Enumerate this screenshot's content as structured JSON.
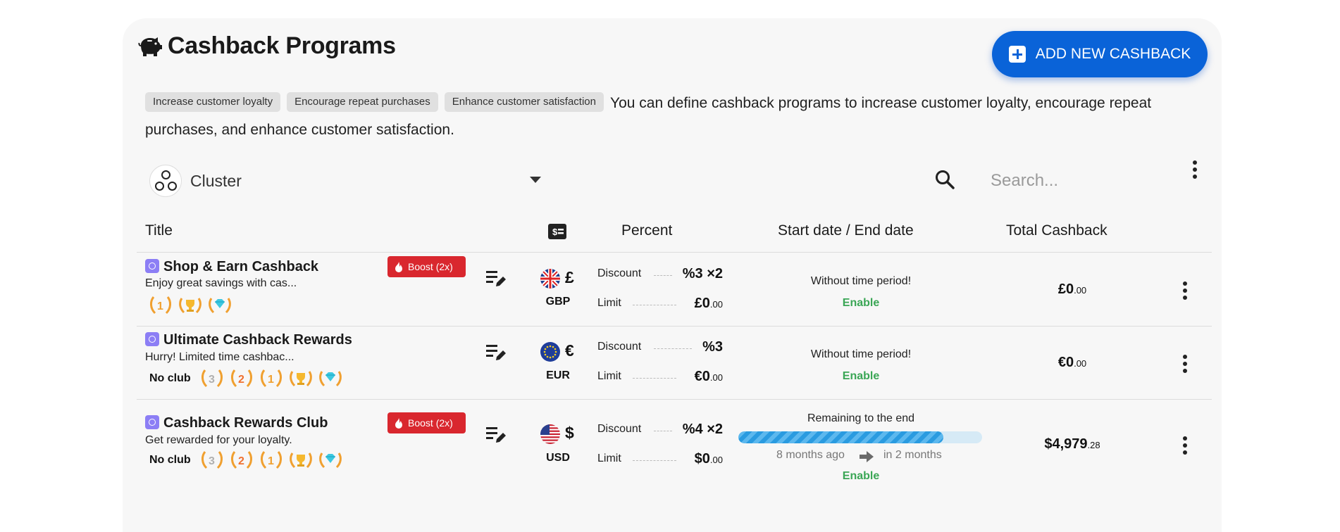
{
  "header": {
    "title": "Cashback Programs",
    "add_button": "ADD NEW CASHBACK"
  },
  "intro": {
    "chips": [
      "Increase customer loyalty",
      "Encourage repeat purchases",
      "Enhance customer satisfaction"
    ],
    "text": "You can define cashback programs to increase customer loyalty, encourage repeat purchases, and enhance customer satisfaction."
  },
  "filter": {
    "cluster_label": "Cluster",
    "search_placeholder": "Search..."
  },
  "columns": {
    "title": "Title",
    "percent": "Percent",
    "dates": "Start date / End date",
    "total": "Total Cashback"
  },
  "rows": [
    {
      "title": "Shop & Earn Cashback",
      "subtitle": "Enjoy great savings with cas...",
      "boost": "Boost (2x)",
      "club": "",
      "badges": [
        "level-1-badge",
        "trophy-badge",
        "diamond-badge"
      ],
      "currency_symbol": "£",
      "currency_code": "GBP",
      "discount_label": "Discount",
      "discount": "%3 ×2",
      "limit_label": "Limit",
      "limit_main": "£0",
      "limit_cents": ".00",
      "period": "Without time period!",
      "status": "Enable",
      "total_main": "£0",
      "total_cents": ".00"
    },
    {
      "title": "Ultimate Cashback Rewards",
      "subtitle": "Hurry! Limited time cashbac...",
      "boost": "",
      "club": "No club",
      "badges": [
        "level-3-badge",
        "level-2-badge",
        "level-1-badge",
        "trophy-badge",
        "diamond-badge"
      ],
      "currency_symbol": "€",
      "currency_code": "EUR",
      "discount_label": "Discount",
      "discount": "%3",
      "limit_label": "Limit",
      "limit_main": "€0",
      "limit_cents": ".00",
      "period": "Without time period!",
      "status": "Enable",
      "total_main": "€0",
      "total_cents": ".00"
    },
    {
      "title": "Cashback Rewards Club",
      "subtitle": "Get rewarded for your loyalty.",
      "boost": "Boost (2x)",
      "club": "No club",
      "badges": [
        "level-3-badge",
        "level-2-badge",
        "level-1-badge",
        "trophy-badge",
        "diamond-badge"
      ],
      "currency_symbol": "$",
      "currency_code": "USD",
      "discount_label": "Discount",
      "discount": "%4 ×2",
      "limit_label": "Limit",
      "limit_main": "$0",
      "limit_cents": ".00",
      "period": "Remaining to the end",
      "progress": 0.84,
      "start_relative": "8 months ago",
      "end_relative": "in 2 months",
      "status": "Enable",
      "total_main": "$4,979",
      "total_cents": ".28"
    }
  ],
  "colors": {
    "primary": "#0a63d8",
    "boost": "#d9272e",
    "enable": "#3aa655",
    "tag": "#8c7ef5"
  }
}
